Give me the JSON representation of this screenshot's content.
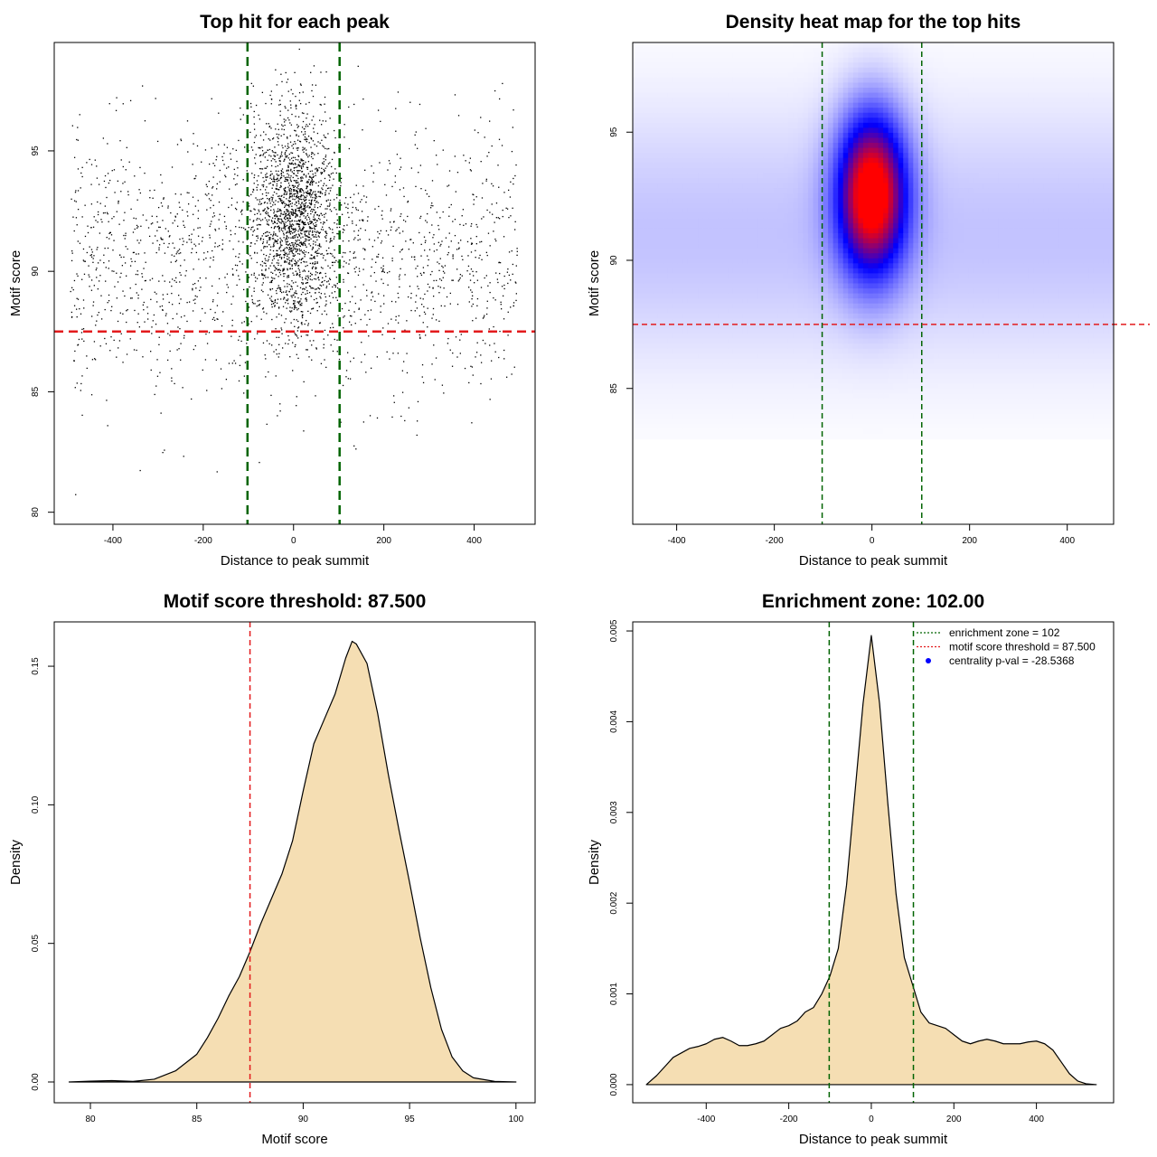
{
  "colors": {
    "frame": "#000000",
    "zone_line": "#006400",
    "threshold_line": "#e31a1c",
    "density_fill": "#f5deb3",
    "density_stroke": "#000000",
    "heat_low": "#ffffff",
    "heat_mid": "#0000ff",
    "heat_high": "#ff0000",
    "point": "#000000",
    "pval_point": "#0000ff"
  },
  "chart_data": [
    {
      "id": "scatter",
      "type": "scatter",
      "title": "Top hit for each peak",
      "xlabel": "Distance to peak summit",
      "ylabel": "Motif score",
      "xlim": [
        -530,
        535
      ],
      "ylim": [
        79.5,
        99.5
      ],
      "xticks": [
        "-400",
        "-200",
        "0",
        "200",
        "400"
      ],
      "yticks": [
        "80",
        "85",
        "90",
        "95"
      ],
      "vlines": [
        -102,
        102
      ],
      "hline": 87.5,
      "point_count": 3500,
      "distribution": {
        "uniform_x": [
          -495,
          495
        ],
        "uniform_y_mean": 90.5,
        "uniform_y_sd": 2.8,
        "central_x_mean": 0,
        "central_x_sd": 45,
        "central_y_mean": 92.3,
        "central_y_sd": 2.2,
        "central_fraction": 0.5
      },
      "grid": false
    },
    {
      "id": "heatmap",
      "type": "heatmap",
      "title": "Density heat map for the top hits",
      "xlabel": "Distance to peak summit",
      "ylabel": "Motif score",
      "xlim": [
        -490,
        495
      ],
      "ylim": [
        79.7,
        98.5
      ],
      "xticks": [
        "-400",
        "-200",
        "0",
        "200",
        "400"
      ],
      "yticks": [
        "85",
        "90",
        "95"
      ],
      "vlines": [
        -102,
        102
      ],
      "hline": 87.5,
      "peak": {
        "x": 0,
        "y": 92.6,
        "sx": 50,
        "sy": 2.2
      },
      "background_band": {
        "y": 91,
        "sy": 3.5,
        "x_half_width": 495
      },
      "grid": false
    },
    {
      "id": "score_density",
      "type": "area",
      "title": "Motif score threshold: 87.500",
      "xlabel": "Motif score",
      "ylabel": "Density",
      "xlim": [
        78.3,
        100.9
      ],
      "ylim": [
        -0.0075,
        0.166
      ],
      "xticks": [
        "80",
        "85",
        "90",
        "95",
        "100"
      ],
      "yticks": [
        "0.00",
        "0.05",
        "0.10",
        "0.15"
      ],
      "vline": 87.5,
      "x": [
        79,
        80,
        81,
        82,
        83,
        84,
        85,
        85.5,
        86,
        86.5,
        87,
        87.5,
        88,
        88.5,
        89,
        89.5,
        90,
        90.5,
        91,
        91.5,
        92,
        92.3,
        92.5,
        93,
        93.5,
        94,
        94.5,
        95,
        95.5,
        96,
        96.5,
        97,
        97.5,
        98,
        99,
        100
      ],
      "y": [
        0.0,
        0.0003,
        0.0005,
        0.0002,
        0.001,
        0.004,
        0.01,
        0.016,
        0.023,
        0.031,
        0.038,
        0.047,
        0.057,
        0.066,
        0.075,
        0.087,
        0.105,
        0.122,
        0.131,
        0.14,
        0.153,
        0.159,
        0.158,
        0.151,
        0.133,
        0.111,
        0.091,
        0.072,
        0.052,
        0.034,
        0.019,
        0.009,
        0.004,
        0.0015,
        0.0002,
        0.0
      ]
    },
    {
      "id": "distance_density",
      "type": "area",
      "title": "Enrichment zone: 102.00",
      "xlabel": "Distance to peak summit",
      "ylabel": "Density",
      "xlim": [
        -578,
        587
      ],
      "ylim": [
        -0.0002,
        0.0051
      ],
      "xticks": [
        "-400",
        "-200",
        "0",
        "200",
        "400"
      ],
      "yticks": [
        "0.000",
        "0.001",
        "0.002",
        "0.003",
        "0.004",
        "0.005"
      ],
      "vlines": [
        -102,
        102
      ],
      "x": [
        -545,
        -520,
        -500,
        -480,
        -460,
        -440,
        -420,
        -400,
        -380,
        -360,
        -340,
        -320,
        -300,
        -280,
        -260,
        -240,
        -220,
        -200,
        -180,
        -160,
        -140,
        -120,
        -100,
        -80,
        -60,
        -40,
        -20,
        0,
        20,
        40,
        60,
        80,
        100,
        120,
        140,
        160,
        180,
        200,
        220,
        240,
        260,
        280,
        300,
        320,
        340,
        360,
        380,
        400,
        420,
        440,
        460,
        480,
        500,
        520,
        545
      ],
      "y": [
        0.0,
        0.0001,
        0.0002,
        0.0003,
        0.00035,
        0.0004,
        0.00042,
        0.00045,
        0.0005,
        0.00052,
        0.00048,
        0.00043,
        0.00043,
        0.00045,
        0.00048,
        0.00055,
        0.00062,
        0.00065,
        0.0007,
        0.0008,
        0.00085,
        0.001,
        0.0012,
        0.0015,
        0.0022,
        0.0032,
        0.0042,
        0.00495,
        0.0042,
        0.0031,
        0.0021,
        0.0014,
        0.0011,
        0.0008,
        0.00068,
        0.00065,
        0.00062,
        0.00055,
        0.00048,
        0.00045,
        0.00048,
        0.0005,
        0.00048,
        0.00045,
        0.00045,
        0.00045,
        0.00047,
        0.00048,
        0.00045,
        0.00038,
        0.00025,
        0.00012,
        4e-05,
        1e-05,
        0.0
      ],
      "legend": {
        "placement": "top-right",
        "items": [
          {
            "label": "enrichment zone = 102",
            "kind": "line",
            "color": "#006400"
          },
          {
            "label": "motif score threshold = 87.500",
            "kind": "line",
            "color": "#e31a1c"
          },
          {
            "label": "centrality p-val = -28.5368",
            "kind": "point",
            "color": "#0000ff"
          }
        ]
      }
    }
  ]
}
